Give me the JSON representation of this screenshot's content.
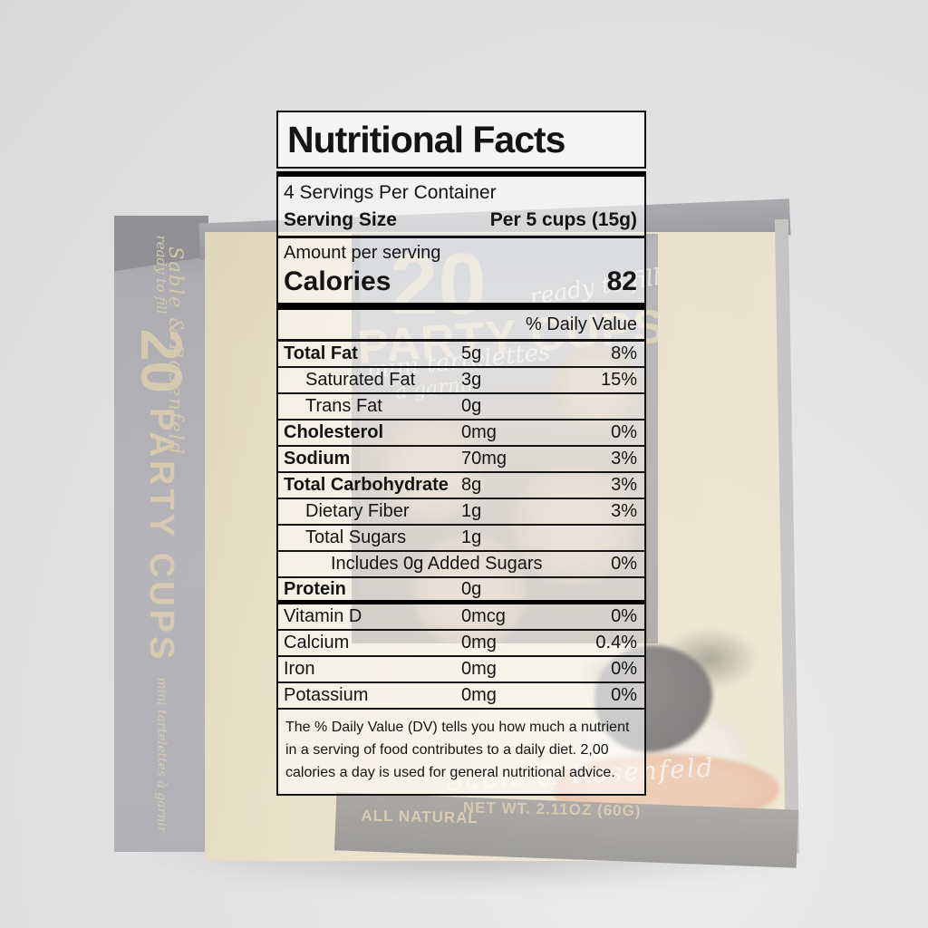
{
  "label": {
    "title": "Nutritional Facts",
    "servings_per_container": "4 Servings Per Container",
    "serving_size": {
      "label": "Serving Size",
      "value": "Per 5 cups (15g)"
    },
    "amount_per_serving": "Amount per serving",
    "calories": {
      "label": "Calories",
      "value": "82"
    },
    "daily_value_header": "% Daily Value",
    "rows": [
      {
        "name": "Total Fat",
        "amount": "5g",
        "dv": "8%"
      },
      {
        "name": "Saturated Fat",
        "amount": "3g",
        "dv": "15%"
      },
      {
        "name": "Trans Fat",
        "amount": "0g",
        "dv": ""
      },
      {
        "name": "Cholesterol",
        "amount": "0mg",
        "dv": "0%"
      },
      {
        "name": "Sodium",
        "amount": "70mg",
        "dv": "3%"
      },
      {
        "name": "Total Carbohydrate",
        "amount": "8g",
        "dv": "3%"
      },
      {
        "name": "Dietary Fiber",
        "amount": "1g",
        "dv": "3%"
      },
      {
        "name": "Total Sugars",
        "amount": "1g",
        "dv": ""
      },
      {
        "name": "Includes 0g Added Sugars",
        "amount": "",
        "dv": "0%"
      },
      {
        "name": "Protein",
        "amount": "0g",
        "dv": ""
      },
      {
        "name": "Vitamin D",
        "amount": "0mcg",
        "dv": "0%"
      },
      {
        "name": "Calcium",
        "amount": "0mg",
        "dv": "0.4%"
      },
      {
        "name": "Iron",
        "amount": "0mg",
        "dv": "0%"
      },
      {
        "name": "Potassium",
        "amount": "0mg",
        "dv": "0%"
      }
    ],
    "footnote": "The % Daily Value (DV) tells you how much a nutrient in a serving of food contributes to a daily diet. 2,00 calories a day is used for general nutritional advice."
  },
  "box": {
    "front": {
      "count": "20",
      "product": "PARTY CUPS",
      "tagline": "ready to fill",
      "subtitle_line1": "mini tartelettes",
      "subtitle_line2": "à garnir",
      "brand_script": "Sable & Rosenfeld",
      "all_natural": "ALL NATURAL",
      "net_weight": "NET WT. 2.11OZ (60G)"
    },
    "spine": {
      "brand_script": "Sable & Rosenfeld",
      "count": "20",
      "product": "PARTY CUPS",
      "tagline": "ready to fill",
      "subtitle": "mini tartelettes à garnir"
    }
  },
  "colors": {
    "ink": "#141414",
    "accent_tan": "#d9c193",
    "box_front_tan": "#eee0b4",
    "spine_gray": "#8b8b93",
    "photo_window_brown": "#4e3f2f",
    "bottom_strip": "#6e6a64",
    "page_bg": "#e3e3e3"
  }
}
